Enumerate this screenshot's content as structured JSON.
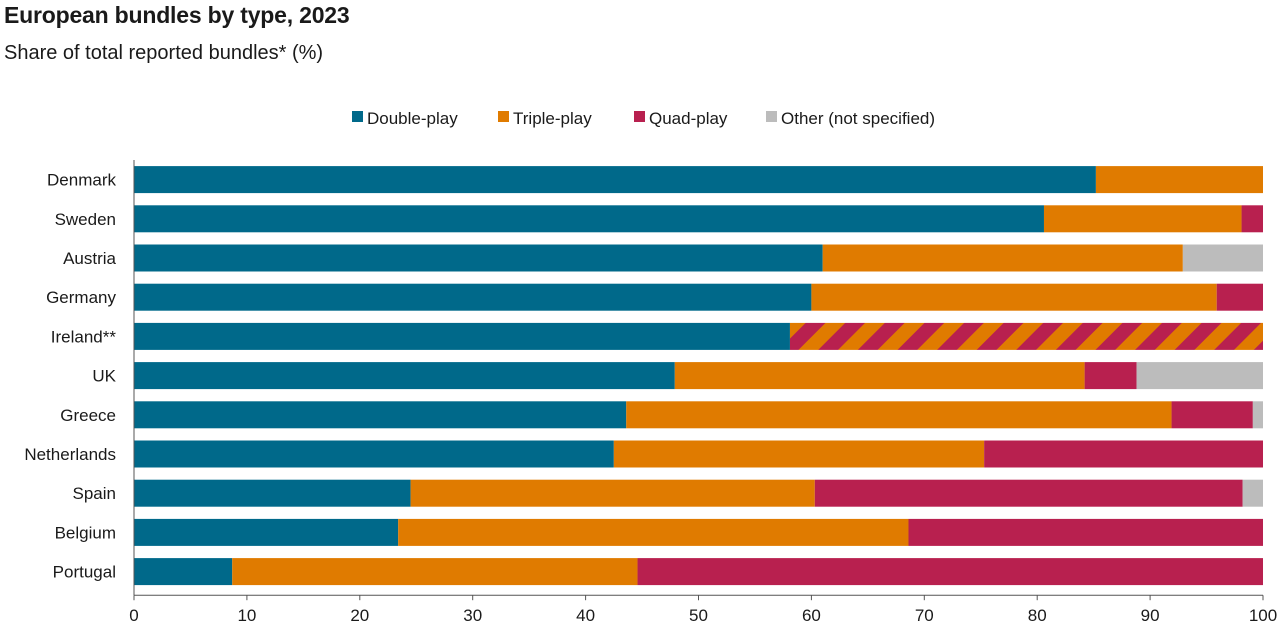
{
  "title": "European bundles by type, 2023",
  "subtitle": "Share of total reported bundles* (%)",
  "chart_data": {
    "type": "bar",
    "orientation": "horizontal",
    "stacked": true,
    "categories": [
      "Denmark",
      "Sweden",
      "Austria",
      "Germany",
      "Ireland**",
      "UK",
      "Greece",
      "Netherlands",
      "Spain",
      "Belgium",
      "Portugal"
    ],
    "series": [
      {
        "name": "Double-play",
        "color": "#00698a",
        "values": [
          85.2,
          80.6,
          61.0,
          60.0,
          58.1,
          47.9,
          43.6,
          42.5,
          24.5,
          23.4,
          8.7
        ]
      },
      {
        "name": "Triple-play",
        "color": "#e07b00",
        "values": [
          14.8,
          17.5,
          31.9,
          35.9,
          0,
          36.3,
          48.3,
          32.8,
          35.8,
          45.2,
          35.9
        ]
      },
      {
        "name": "Quad-play",
        "color": "#b8204f",
        "values": [
          0,
          1.9,
          0,
          4.1,
          0,
          4.6,
          7.2,
          24.7,
          37.9,
          31.4,
          55.4
        ]
      },
      {
        "name": "Other (not specified)",
        "color": "#bcbcbc",
        "values": [
          0,
          0,
          7.1,
          0,
          0,
          11.2,
          0.9,
          0,
          1.8,
          0,
          0
        ]
      }
    ],
    "combined_segments": [
      {
        "category": "Ireland**",
        "series": [
          "Triple-play",
          "Quad-play"
        ],
        "value": 41.9,
        "pattern": "diagonal-stripes"
      }
    ],
    "xlim": [
      0,
      100
    ],
    "xticks": [
      0,
      10,
      20,
      30,
      40,
      50,
      60,
      70,
      80,
      90,
      100
    ],
    "legend": "top-center",
    "grid": false
  }
}
